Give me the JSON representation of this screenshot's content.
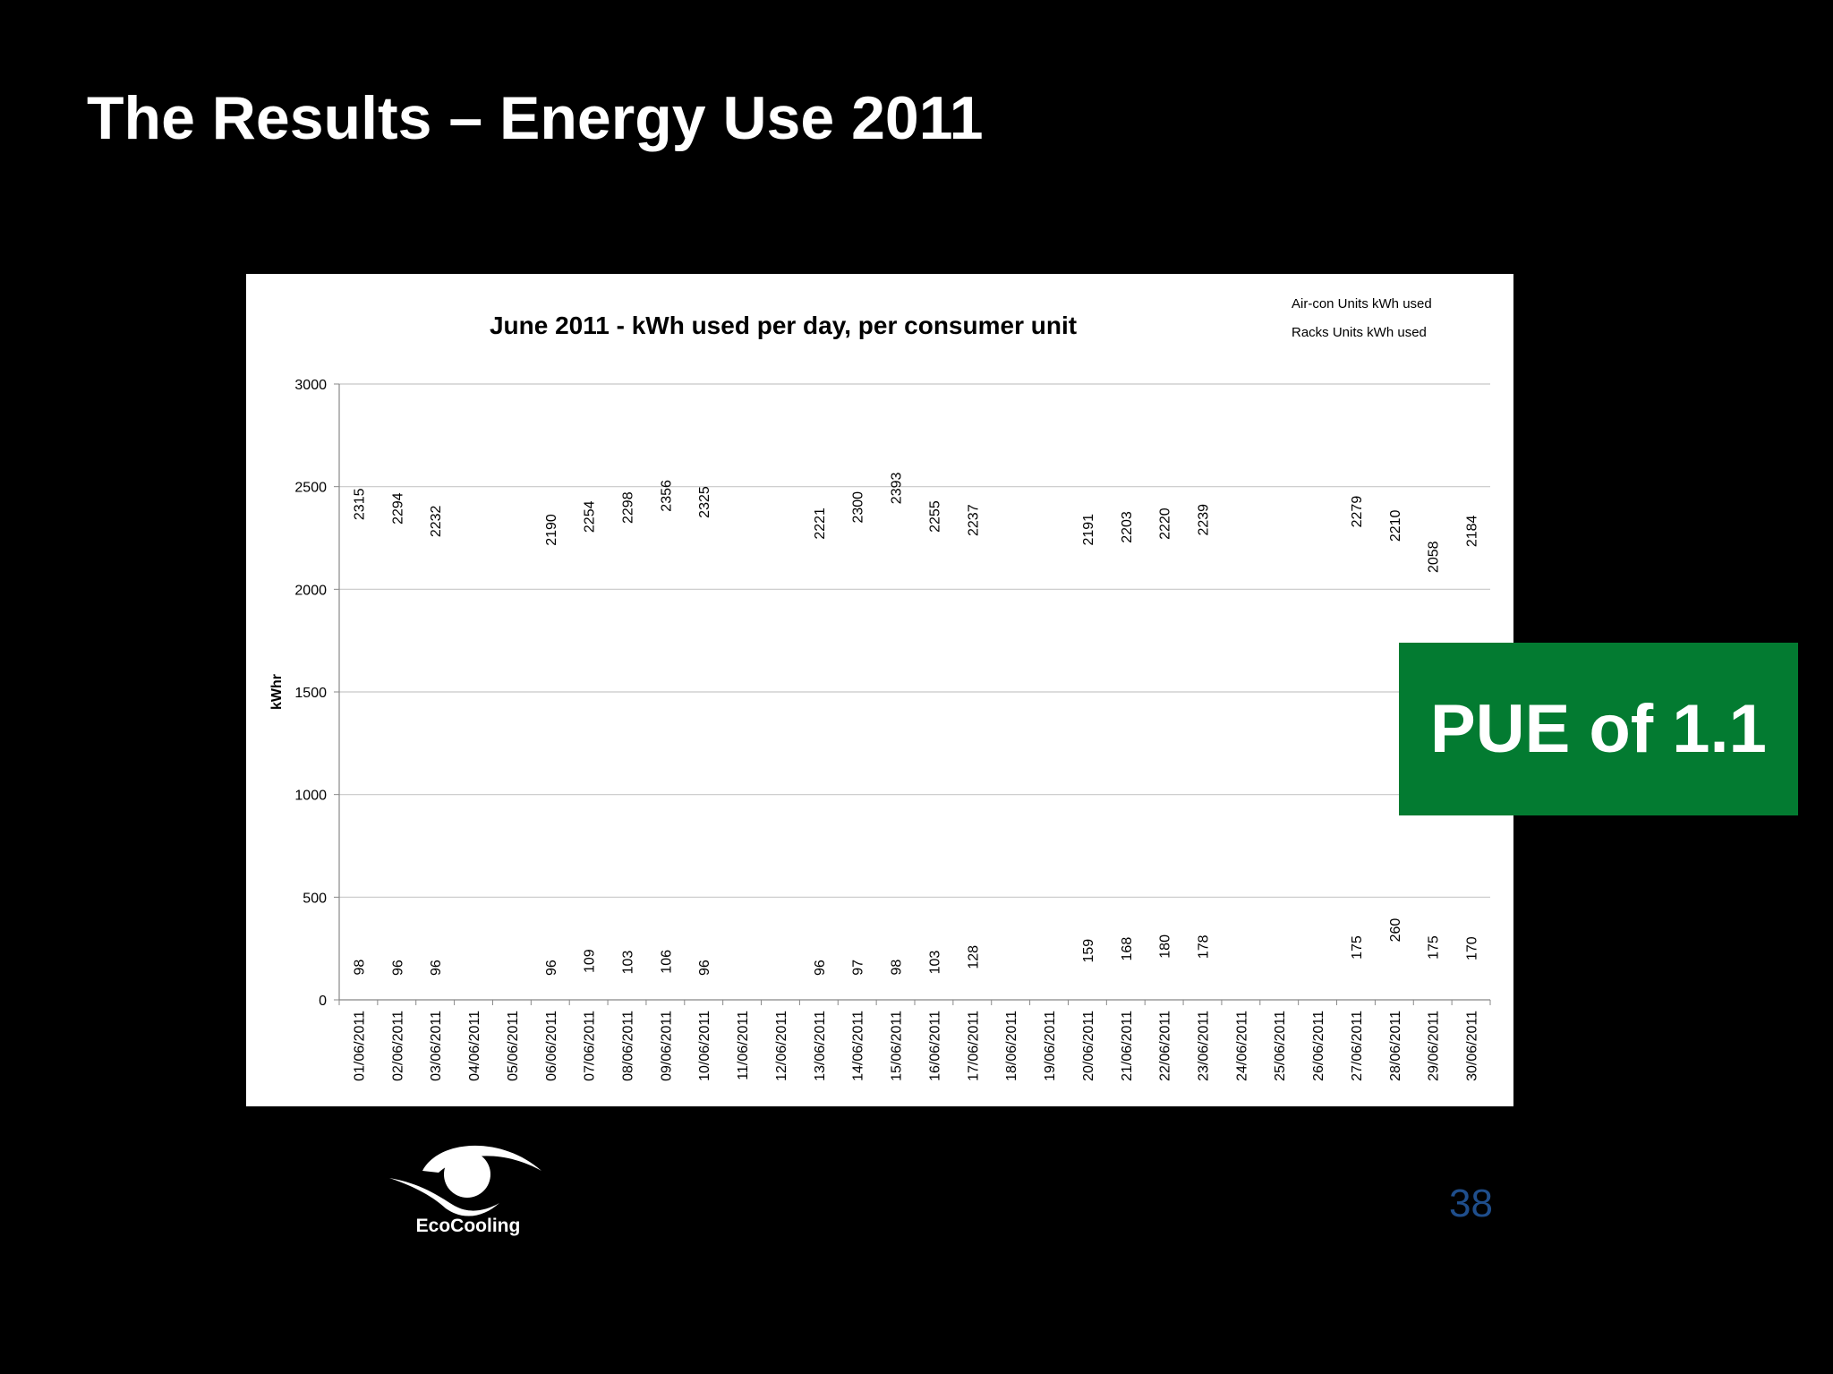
{
  "slide": {
    "title": "The Results – Energy Use 2011",
    "badge": "PUE of 1.1",
    "page_number": "38",
    "logo_text": "EcoCooling"
  },
  "chart_data": {
    "type": "scatter",
    "title": "June 2011 - kWh used per day, per consumer unit",
    "xlabel": "",
    "ylabel": "kWhr",
    "ylim": [
      0,
      3000
    ],
    "yticks": [
      0,
      500,
      1000,
      1500,
      2000,
      2500,
      3000
    ],
    "grid": true,
    "legend_position": "top-right",
    "categories": [
      "01/06/2011",
      "02/06/2011",
      "03/06/2011",
      "04/06/2011",
      "05/06/2011",
      "06/06/2011",
      "07/06/2011",
      "08/06/2011",
      "09/06/2011",
      "10/06/2011",
      "11/06/2011",
      "12/06/2011",
      "13/06/2011",
      "14/06/2011",
      "15/06/2011",
      "16/06/2011",
      "17/06/2011",
      "18/06/2011",
      "19/06/2011",
      "20/06/2011",
      "21/06/2011",
      "22/06/2011",
      "23/06/2011",
      "24/06/2011",
      "25/06/2011",
      "26/06/2011",
      "27/06/2011",
      "28/06/2011",
      "29/06/2011",
      "30/06/2011"
    ],
    "series": [
      {
        "name": "Air-con Units kWh used",
        "values": [
          98,
          96,
          96,
          null,
          null,
          96,
          109,
          103,
          106,
          96,
          null,
          null,
          96,
          97,
          98,
          103,
          128,
          null,
          null,
          159,
          168,
          180,
          178,
          null,
          null,
          null,
          175,
          260,
          175,
          170
        ]
      },
      {
        "name": "Racks Units kWh used",
        "values": [
          2315,
          2294,
          2232,
          null,
          null,
          2190,
          2254,
          2298,
          2356,
          2325,
          null,
          null,
          2221,
          2300,
          2393,
          2255,
          2237,
          null,
          null,
          2191,
          2203,
          2220,
          2239,
          null,
          null,
          null,
          2279,
          2210,
          2058,
          2184
        ]
      }
    ]
  }
}
